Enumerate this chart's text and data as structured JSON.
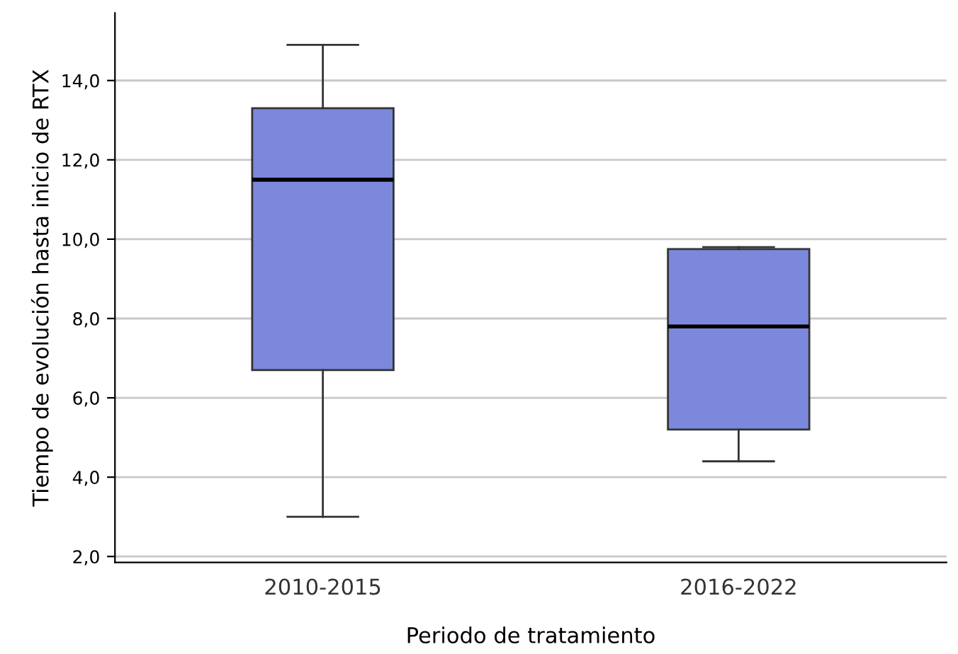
{
  "chart_data": {
    "type": "box",
    "xlabel": "Periodo de tratamiento",
    "ylabel": "Tiempo de evolución hasta inicio de RTX",
    "categories": [
      "2010-2015",
      "2016-2022"
    ],
    "boxes": [
      {
        "low": 3.0,
        "q1": 6.7,
        "median": 11.5,
        "q3": 13.3,
        "high": 14.9
      },
      {
        "low": 4.4,
        "q1": 5.2,
        "median": 7.8,
        "q3": 9.75,
        "high": 9.8
      }
    ],
    "color": "#7b88db",
    "ylim": [
      1.85,
      15.7
    ],
    "yticks": [
      {
        "value": 2,
        "label": "2,0"
      },
      {
        "value": 4,
        "label": "4,0"
      },
      {
        "value": 6,
        "label": "6,0"
      },
      {
        "value": 8,
        "label": "8,0"
      },
      {
        "value": 10,
        "label": "10,0"
      },
      {
        "value": 12,
        "label": "12,0"
      },
      {
        "value": 14,
        "label": "14,0"
      }
    ],
    "grid": "y"
  }
}
